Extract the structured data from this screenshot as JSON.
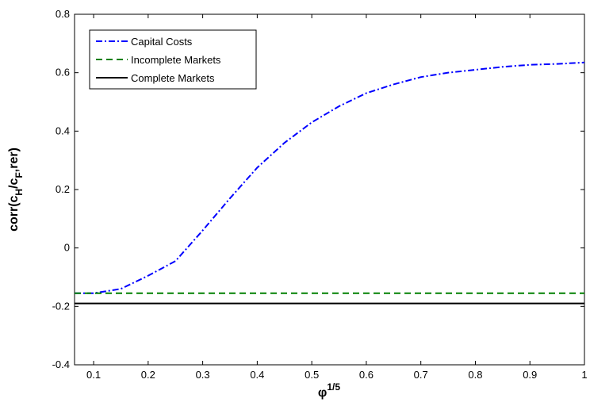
{
  "chart_data": {
    "type": "line",
    "x_label": [
      "φ",
      "1/5"
    ],
    "y_label": [
      "corr(c",
      "H",
      "/c",
      "F",
      ",rer)"
    ],
    "xlim": [
      0.065,
      1
    ],
    "xticks": [
      0.1,
      0.2,
      0.3,
      0.4,
      0.5,
      0.6,
      0.7,
      0.8,
      0.9,
      1
    ],
    "ylim": [
      -0.4,
      0.8
    ],
    "yticks": [
      -0.4,
      -0.2,
      0,
      0.2,
      0.4,
      0.6,
      0.8
    ],
    "legend": "upper-left",
    "series": [
      {
        "name": "Capital Costs",
        "color": "#0000ff",
        "style": "dash-dot",
        "x": [
          0.065,
          0.1,
          0.15,
          0.2,
          0.25,
          0.3,
          0.35,
          0.4,
          0.45,
          0.5,
          0.55,
          0.6,
          0.65,
          0.7,
          0.75,
          0.8,
          0.85,
          0.9,
          0.95,
          1
        ],
        "values": [
          -0.155,
          -0.155,
          -0.14,
          -0.095,
          -0.045,
          0.06,
          0.17,
          0.275,
          0.36,
          0.43,
          0.485,
          0.53,
          0.56,
          0.585,
          0.6,
          0.61,
          0.62,
          0.627,
          0.63,
          0.635
        ]
      },
      {
        "name": "Incomplete Markets",
        "color": "#008000",
        "style": "dashed",
        "x": [
          0.065,
          1
        ],
        "values": [
          -0.155,
          -0.155
        ]
      },
      {
        "name": "Complete Markets",
        "color": "#000000",
        "style": "solid",
        "x": [
          0.065,
          1
        ],
        "values": [
          -0.19,
          -0.19
        ]
      }
    ]
  }
}
